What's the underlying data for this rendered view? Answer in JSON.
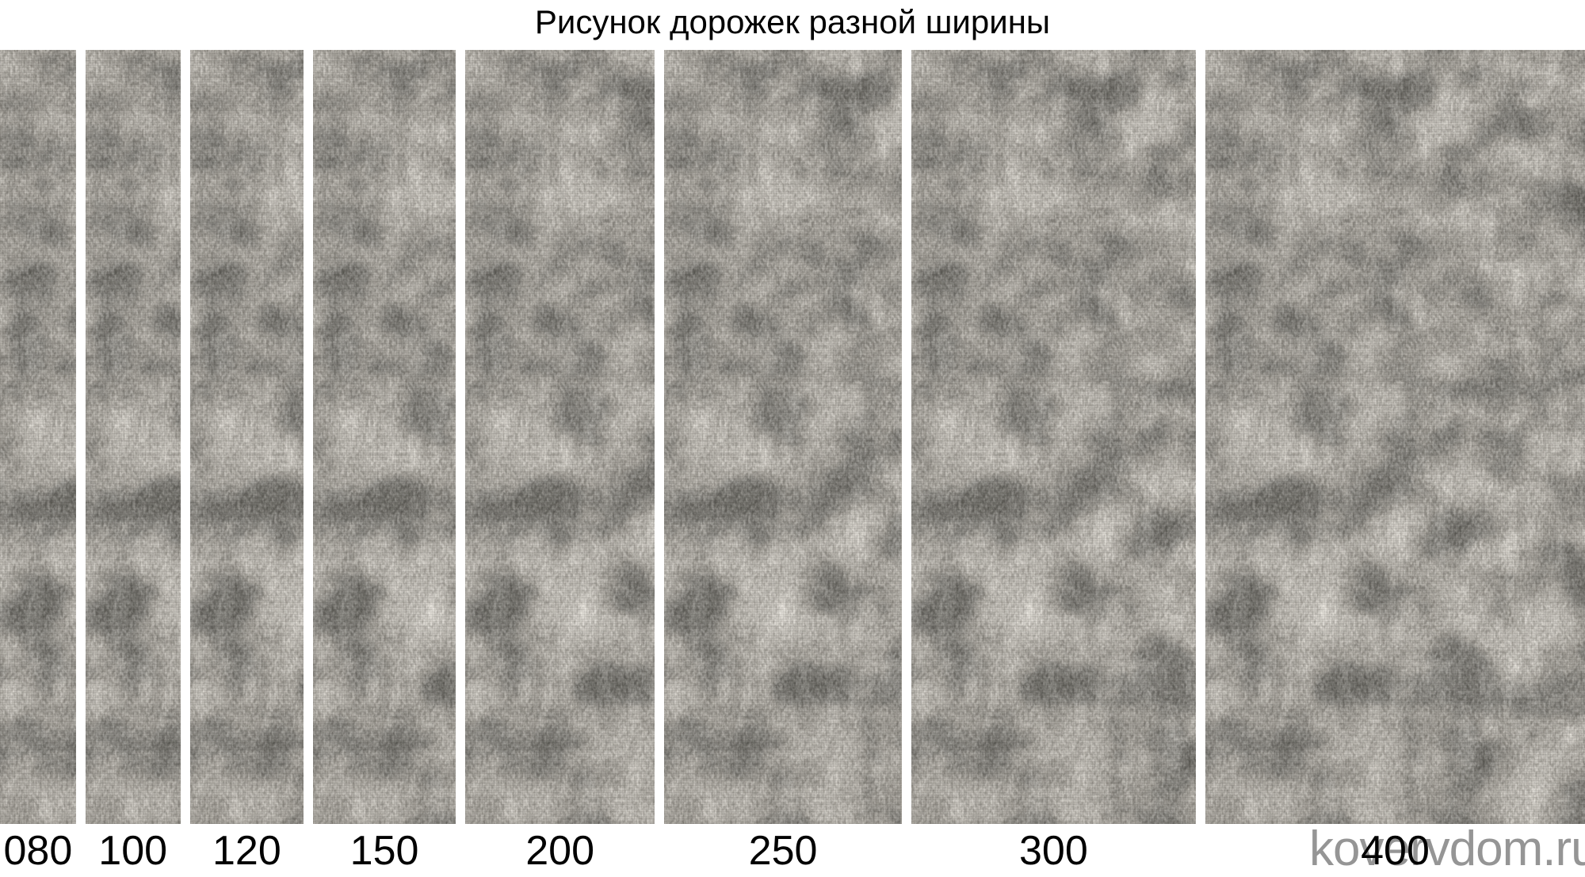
{
  "title": "Рисунок дорожек разной ширины",
  "watermark": "kovervdom.ru",
  "palette": {
    "background": "#ffffff",
    "title_color": "#000000",
    "label_color": "#000000",
    "watermark_color": "#959595",
    "carpet_light": "#ddd9d0",
    "carpet_mid": "#aaa69e",
    "carpet_dark": "#7e7a73"
  },
  "runners": [
    {
      "label": "080",
      "width_cm": 80
    },
    {
      "label": "100",
      "width_cm": 100
    },
    {
      "label": "120",
      "width_cm": 120
    },
    {
      "label": "150",
      "width_cm": 150
    },
    {
      "label": "200",
      "width_cm": 200
    },
    {
      "label": "250",
      "width_cm": 250
    },
    {
      "label": "300",
      "width_cm": 300
    },
    {
      "label": "400",
      "width_cm": 400
    }
  ]
}
